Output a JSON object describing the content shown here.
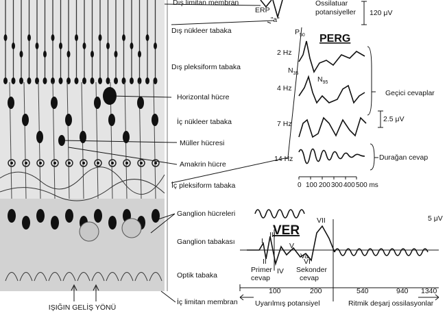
{
  "retina": {
    "labels": [
      "Dış limitan membran",
      "Dış nükleer tabaka",
      "Dış pleksiform tabaka",
      "Horizontal hücre",
      "İç nükleer tabaka",
      "Müller hücresi",
      "Amakrin hücre",
      "İç pleksiform tabaka",
      "Ganglion hücreleri",
      "Ganglion tabakası",
      "Optik tabaka",
      "İç limitan membran"
    ],
    "light_direction": "IŞIĞIN GELİŞ YÖNÜ"
  },
  "erg": {
    "erp": "ERP",
    "a_wave": "\"a\"",
    "oscillatory": [
      "Ossilatuar",
      "potansiyeller"
    ],
    "scale": "120 μV"
  },
  "perg": {
    "title": "PERG",
    "p50": {
      "main": "P",
      "sub": "50"
    },
    "n35": {
      "main": "N",
      "sub": "35"
    },
    "n95": {
      "main": "N",
      "sub": "95"
    },
    "frequencies": [
      "2 Hz",
      "4 Hz",
      "7 Hz",
      "14 Hz"
    ],
    "transient": "Geçici cevaplar",
    "scale": "2.5 μV",
    "steady": "Durağan cevap",
    "axis": [
      "0",
      "100",
      "200",
      "300",
      "400",
      "500 ms"
    ]
  },
  "ver": {
    "title": "VER",
    "scale": "5 μV",
    "waves": [
      "I",
      "II",
      "III",
      "IV",
      "V",
      "Va",
      "VI",
      "VII"
    ],
    "primary": [
      "Primer",
      "cevap"
    ],
    "secondary": [
      "Sekonder",
      "cevap"
    ],
    "axis_left": [
      "100",
      "200"
    ],
    "axis_right": [
      "540",
      "940",
      "1340"
    ],
    "evoked": "Uyarılmış potansiyel",
    "rhythmic": "Ritmik deşarj ossilasyonlar"
  }
}
